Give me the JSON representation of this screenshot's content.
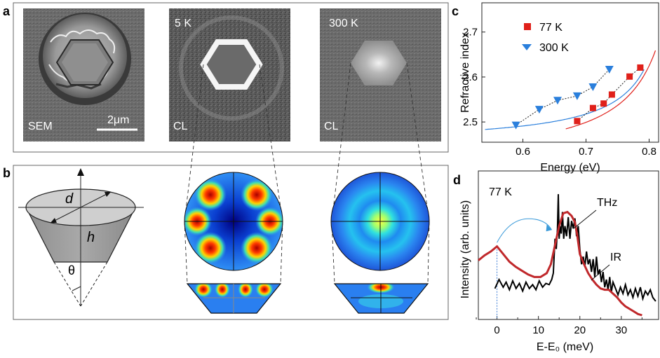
{
  "figure": {
    "panel_labels": {
      "a": "a",
      "b": "b",
      "c": "c",
      "d": "d"
    },
    "a": {
      "sem_label": "SEM",
      "scale_bar": "2μm",
      "cl_5k_title": "5 K",
      "cl_300k_title": "300 K",
      "cl_label": "CL"
    },
    "b": {
      "d_label": "d",
      "h_label": "h",
      "theta_label": "θ"
    }
  },
  "chart_data": [
    {
      "id": "c",
      "type": "scatter",
      "xlabel": "Energy (eV)",
      "ylabel": "Refractive index",
      "xlim": [
        0.535,
        0.815
      ],
      "ylim": [
        2.455,
        2.765
      ],
      "xticks": [
        0.6,
        0.7,
        0.8
      ],
      "yticks": [
        2.5,
        2.6,
        2.7
      ],
      "xtick_labels": [
        "0.6",
        "0.7",
        "0.8"
      ],
      "ytick_labels": [
        "2.5",
        "2.6",
        "2.7"
      ],
      "colors": {
        "77K": "#e0201a",
        "300K": "#2a7fdc"
      },
      "series": [
        {
          "name": "77 K",
          "marker": "square",
          "color": "#e0201a",
          "x": [
            0.686,
            0.711,
            0.728,
            0.741,
            0.769,
            0.786
          ],
          "y": [
            2.502,
            2.531,
            2.541,
            2.561,
            2.601,
            2.621
          ]
        },
        {
          "name": "300 K",
          "marker": "triangle-down",
          "color": "#2a7fdc",
          "x": [
            0.589,
            0.626,
            0.655,
            0.686,
            0.711,
            0.737
          ],
          "y": [
            2.493,
            2.528,
            2.548,
            2.558,
            2.578,
            2.617
          ]
        }
      ],
      "fit_curves": [
        {
          "name": "77 K fit",
          "color": "#e0201a",
          "x0": 0.875,
          "a": 2.405,
          "b": 0.0165,
          "xrange": [
            0.668,
            0.812
          ]
        },
        {
          "name": "300 K fit",
          "color": "#2a7fdc",
          "x0": 0.855,
          "a": 2.45,
          "b": 0.0105,
          "xrange": [
            0.54,
            0.794
          ]
        }
      ],
      "legend": [
        "77 K",
        "300 K"
      ],
      "legend_position": "top-left"
    },
    {
      "id": "d",
      "type": "line",
      "xlabel": "E-E₀ (meV)",
      "ylabel": "Intensity (arb. units)",
      "xlim": [
        -4.5,
        39
      ],
      "ylim": [
        0,
        1
      ],
      "xticks": [
        0,
        10,
        20,
        30
      ],
      "xtick_labels": [
        "0",
        "10",
        "20",
        "30"
      ],
      "annotations": {
        "temperature": "77 K",
        "thz": "THz",
        "ir": "IR"
      },
      "series": [
        {
          "name": "THz",
          "color": "#000000",
          "x": [
            -0.5,
            0.5,
            1.5,
            2.2,
            3,
            3.8,
            4.6,
            5.4,
            6.2,
            7,
            7.8,
            8.6,
            9.4,
            10.2,
            11,
            11.8,
            12.6,
            13.2,
            13.6,
            14.0,
            14.3,
            14.6,
            14.8,
            15.0,
            15.2,
            15.5,
            15.8,
            16.1,
            16.4,
            16.8,
            17.2,
            17.6,
            18.0,
            18.4,
            18.8,
            19.2,
            19.6,
            20.0,
            20.4,
            20.8,
            21.2,
            21.6,
            22.0,
            22.4,
            22.8,
            23.2,
            23.6,
            24.0,
            24.4,
            24.8,
            25.2,
            25.6,
            26.0,
            26.4,
            26.8,
            27.2,
            27.6,
            28.0,
            28.6,
            29.2,
            29.8,
            30.4,
            31,
            31.6,
            32.2,
            32.8,
            33.4,
            34,
            34.6,
            35.2,
            35.8,
            36.4,
            37,
            37.6,
            38.3
          ],
          "y": [
            0.21,
            0.28,
            0.22,
            0.26,
            0.2,
            0.27,
            0.21,
            0.25,
            0.19,
            0.26,
            0.21,
            0.24,
            0.2,
            0.27,
            0.22,
            0.25,
            0.24,
            0.28,
            0.33,
            0.6,
            0.52,
            0.68,
            0.95,
            0.6,
            0.7,
            0.64,
            0.81,
            0.6,
            0.7,
            0.62,
            0.77,
            0.6,
            0.74,
            0.68,
            0.76,
            0.62,
            0.7,
            0.52,
            0.4,
            0.46,
            0.38,
            0.5,
            0.4,
            0.44,
            0.34,
            0.44,
            0.3,
            0.46,
            0.32,
            0.36,
            0.26,
            0.34,
            0.22,
            0.28,
            0.2,
            0.3,
            0.18,
            0.26,
            0.21,
            0.16,
            0.22,
            0.17,
            0.24,
            0.16,
            0.2,
            0.14,
            0.21,
            0.15,
            0.22,
            0.13,
            0.19,
            0.16,
            0.2,
            0.14,
            0.11
          ]
        },
        {
          "name": "IR",
          "color": "#c0282b",
          "x": [
            -4.5,
            -3,
            -1.5,
            0,
            1.5,
            3,
            4.5,
            6,
            7.5,
            9,
            10.5,
            12,
            13,
            14,
            15,
            16,
            17,
            18,
            18.8,
            19.4,
            20,
            21,
            22,
            23,
            24,
            25,
            26,
            27,
            28,
            29,
            30,
            31,
            32,
            33,
            34,
            35
          ],
          "y": [
            0.43,
            0.47,
            0.5,
            0.54,
            0.48,
            0.42,
            0.38,
            0.35,
            0.32,
            0.3,
            0.3,
            0.33,
            0.4,
            0.55,
            0.7,
            0.8,
            0.81,
            0.78,
            0.73,
            0.62,
            0.48,
            0.4,
            0.33,
            0.28,
            0.24,
            0.21,
            0.2,
            0.2,
            0.17,
            0.14,
            0.1,
            0.07,
            0.05,
            0.03,
            0.01,
            0.0
          ]
        }
      ]
    }
  ]
}
